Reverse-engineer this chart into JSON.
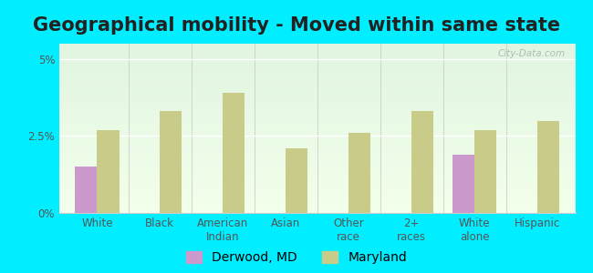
{
  "title": "Geographical mobility - Moved within same state",
  "categories": [
    "White",
    "Black",
    "American\nIndian",
    "Asian",
    "Other\nrace",
    "2+\nraces",
    "White\nalone",
    "Hispanic"
  ],
  "derwood_values": [
    1.5,
    0.0,
    0.0,
    0.0,
    0.0,
    0.0,
    1.9,
    0.0
  ],
  "maryland_values": [
    2.7,
    3.3,
    3.9,
    2.1,
    2.6,
    3.3,
    2.7,
    3.0
  ],
  "derwood_color": "#cc99cc",
  "maryland_color": "#c8cc88",
  "background_outer": "#00eeff",
  "ylim": [
    0,
    5.5
  ],
  "yticks": [
    0,
    2.5,
    5
  ],
  "ytick_labels": [
    "0%",
    "2.5%",
    "5%"
  ],
  "bar_width": 0.35,
  "title_fontsize": 15,
  "tick_fontsize": 8.5,
  "legend_fontsize": 10,
  "watermark_text": "City-Data.com"
}
